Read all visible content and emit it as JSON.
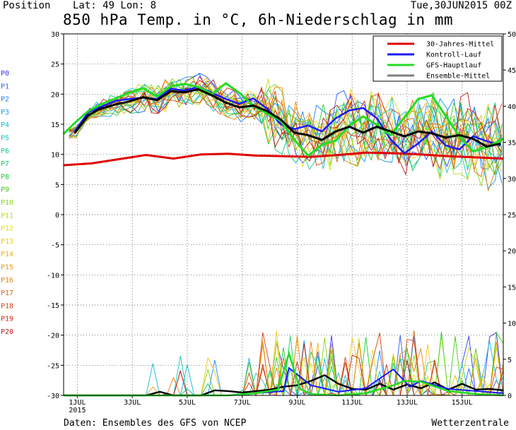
{
  "header": {
    "position": "Position",
    "location": "Lat: 49 Lon: 8",
    "run": "Tue,30JUN2015 00Z"
  },
  "footer": {
    "source": "Daten: Ensembles des GFS von NCEP",
    "brand": "Wetterzentrale"
  },
  "chart_data": {
    "type": "line",
    "title": "850 hPa Temp. in °C, 6h-Niederschlag in mm",
    "ylim_left": [
      -30,
      30
    ],
    "ylim_right": [
      0,
      50
    ],
    "yticks_left": [
      30,
      25,
      20,
      15,
      10,
      5,
      0,
      -5,
      -10,
      -15,
      -20,
      -25,
      -30
    ],
    "yticks_right": [
      50,
      45,
      40,
      35,
      30,
      25,
      20,
      15,
      10,
      5,
      0
    ],
    "xlim_days": [
      0,
      16
    ],
    "xticks": [
      {
        "day": 0.5,
        "label": "1JUL"
      },
      {
        "day": 2.5,
        "label": "3JUL"
      },
      {
        "day": 4.5,
        "label": "5JUL"
      },
      {
        "day": 6.5,
        "label": "7JUL"
      },
      {
        "day": 8.5,
        "label": "9JUL"
      },
      {
        "day": 10.5,
        "label": "11JUL"
      },
      {
        "day": 12.5,
        "label": "13JUL"
      },
      {
        "day": 14.5,
        "label": "15JUL"
      }
    ],
    "year_label": "2015",
    "grid": true,
    "legend_position": "top-right",
    "legend": [
      {
        "name": "30-Jahres-Mittel",
        "color": "#e00000"
      },
      {
        "name": "Kontroll-Lauf",
        "color": "#1a1aff"
      },
      {
        "name": "GFS-Hauptlauf",
        "color": "#22dd22"
      },
      {
        "name": "Ensemble-Mittel",
        "color": "#808080"
      }
    ],
    "members": [
      {
        "name": "P0",
        "color": "#3333ff"
      },
      {
        "name": "P1",
        "color": "#2a5cff"
      },
      {
        "name": "P2",
        "color": "#1a80ff"
      },
      {
        "name": "P3",
        "color": "#12a0ee"
      },
      {
        "name": "P4",
        "color": "#10b8d8"
      },
      {
        "name": "P5",
        "color": "#10c8c0"
      },
      {
        "name": "P6",
        "color": "#10cc90"
      },
      {
        "name": "P7",
        "color": "#10cc60"
      },
      {
        "name": "P8",
        "color": "#18cc30"
      },
      {
        "name": "P9",
        "color": "#40cc10"
      },
      {
        "name": "P10",
        "color": "#80d810"
      },
      {
        "name": "P11",
        "color": "#c0dc10"
      },
      {
        "name": "P12",
        "color": "#e8dc10"
      },
      {
        "name": "P13",
        "color": "#f0c810"
      },
      {
        "name": "P14",
        "color": "#f0b010"
      },
      {
        "name": "P15",
        "color": "#ec9810"
      },
      {
        "name": "P16",
        "color": "#e88010"
      },
      {
        "name": "P17",
        "color": "#e06010"
      },
      {
        "name": "P18",
        "color": "#d84010"
      },
      {
        "name": "P19",
        "color": "#c82810"
      },
      {
        "name": "P20",
        "color": "#b81818"
      }
    ],
    "climate_mean": {
      "days": [
        0,
        1,
        2,
        3,
        4,
        5,
        6,
        7,
        8,
        9,
        10,
        11,
        12,
        13,
        14,
        15,
        16
      ],
      "values": [
        8.2,
        8.5,
        9.2,
        9.9,
        9.3,
        10.0,
        10.1,
        9.8,
        9.7,
        9.6,
        9.9,
        10.3,
        10.2,
        10.0,
        9.7,
        9.5,
        9.3
      ]
    },
    "ensemble_mean": {
      "days": [
        0.4,
        0.9,
        1.3,
        1.9,
        2.4,
        2.9,
        3.4,
        3.9,
        4.4,
        4.9,
        5.4,
        5.9,
        6.4,
        6.9,
        7.4,
        7.9,
        8.4,
        8.9,
        9.4,
        9.9,
        10.4,
        10.9,
        11.4,
        11.9,
        12.4,
        12.9,
        13.4,
        13.9,
        14.4,
        14.9,
        15.4,
        15.9
      ],
      "values": [
        13.5,
        16.5,
        17.5,
        18.3,
        18.8,
        19.5,
        19.0,
        20.5,
        20.3,
        20.8,
        19.8,
        18.6,
        17.8,
        18.1,
        17.2,
        15.8,
        13.6,
        13.2,
        12.4,
        13.8,
        14.6,
        13.6,
        14.6,
        13.8,
        13.0,
        13.8,
        13.5,
        12.8,
        13.2,
        12.6,
        11.3,
        11.8
      ]
    },
    "control_run": {
      "days": [
        0.4,
        0.9,
        1.3,
        1.9,
        2.4,
        2.9,
        3.4,
        3.9,
        4.4,
        4.9,
        5.4,
        5.9,
        6.4,
        6.9,
        7.4,
        7.9,
        8.4,
        8.9,
        9.4,
        9.9,
        10.4,
        10.9,
        11.4,
        11.9,
        12.4,
        12.9,
        13.4,
        13.9,
        14.4,
        14.9,
        15.4,
        15.9
      ],
      "values": [
        13.8,
        17.0,
        17.8,
        18.9,
        19.2,
        19.4,
        19.2,
        20.9,
        20.6,
        21.2,
        20.2,
        19.2,
        18.4,
        19.3,
        17.6,
        15.0,
        14.2,
        14.8,
        13.8,
        16.0,
        17.3,
        17.7,
        16.0,
        12.5,
        10.2,
        11.8,
        13.8,
        11.5,
        10.8,
        13.0,
        12.2,
        11.5
      ]
    },
    "main_run": {
      "days": [
        0.0,
        0.4,
        0.9,
        1.4,
        1.9,
        2.4,
        2.9,
        3.4,
        3.9,
        4.4,
        4.9,
        5.4,
        5.9,
        6.4,
        6.9,
        7.4,
        7.9,
        8.4,
        8.9,
        9.4,
        9.9,
        10.4,
        10.9,
        11.4,
        11.9,
        12.4,
        12.9,
        13.4,
        13.9,
        14.4,
        14.9,
        15.4,
        16.0
      ],
      "values": [
        13.4,
        15.2,
        17.2,
        18.4,
        19.3,
        20.3,
        21.0,
        19.6,
        21.3,
        21.7,
        21.2,
        20.0,
        21.8,
        20.2,
        18.1,
        16.8,
        15.6,
        12.4,
        9.8,
        11.6,
        12.3,
        14.8,
        16.3,
        14.9,
        13.2,
        16.1,
        19.2,
        19.8,
        16.4,
        13.0,
        10.5,
        11.2,
        12.6
      ]
    },
    "precip_main_mm": {
      "days": [
        0,
        1,
        2,
        3,
        4,
        5,
        6,
        7,
        7.8,
        8.2,
        8.6,
        9,
        10,
        11,
        12,
        12.4,
        13,
        14,
        15,
        16
      ],
      "values": [
        0,
        0,
        0,
        0,
        0,
        0,
        0,
        0.3,
        0.8,
        5.8,
        0.9,
        0.2,
        0,
        0.3,
        1.4,
        2.0,
        1.9,
        0.6,
        0.2,
        0
      ]
    },
    "precip_control_mm": {
      "days": [
        0,
        2,
        4,
        6,
        7,
        8,
        8.2,
        9,
        10,
        11,
        11.6,
        12,
        12.6,
        13,
        14,
        15,
        16
      ],
      "values": [
        0,
        0,
        0,
        0,
        0.3,
        0.6,
        3.8,
        1.4,
        0.5,
        1.0,
        2.6,
        3.6,
        1.2,
        2.0,
        0.9,
        0.6,
        0.3
      ]
    },
    "precip_ensemble_mean_mm": {
      "days": [
        0,
        1,
        2,
        3,
        3.5,
        4,
        5,
        5.5,
        6,
        6.5,
        7,
        7.5,
        8,
        8.5,
        9,
        9.5,
        10,
        10.5,
        11,
        11.5,
        12,
        12.5,
        13,
        13.5,
        14,
        14.5,
        15,
        15.5,
        16
      ],
      "values": [
        0,
        0,
        0,
        0,
        0.5,
        0,
        0,
        0.7,
        0.6,
        0.4,
        0.6,
        0.8,
        1.2,
        1.4,
        2.0,
        2.8,
        1.6,
        0.9,
        0.8,
        1.6,
        0.8,
        1.5,
        1.0,
        1.8,
        0.8,
        1.6,
        0.8,
        0.9,
        0.7
      ]
    }
  }
}
